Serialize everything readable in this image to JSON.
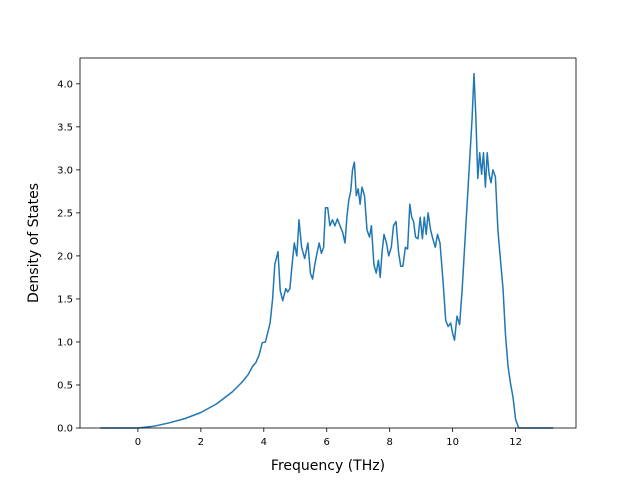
{
  "chart_data": {
    "type": "line",
    "xlabel": "Frequency (THz)",
    "ylabel": "Density of States",
    "xlim": [
      -1.84,
      13.92
    ],
    "ylim": [
      0.0,
      4.3
    ],
    "x_ticks": [
      0,
      2,
      4,
      6,
      8,
      10,
      12
    ],
    "y_ticks": [
      0.0,
      0.5,
      1.0,
      1.5,
      2.0,
      2.5,
      3.0,
      3.5,
      4.0
    ],
    "x_tick_labels": [
      "0",
      "2",
      "4",
      "6",
      "8",
      "10",
      "12"
    ],
    "y_tick_labels": [
      "0.0",
      "0.5",
      "1.0",
      "1.5",
      "2.0",
      "2.5",
      "3.0",
      "3.5",
      "4.0"
    ],
    "grid": false,
    "line_color": "#1f77b4",
    "series": [
      {
        "x": [
          -1.2,
          0.0,
          0.5,
          1.0,
          1.5,
          2.0,
          2.5,
          3.0,
          3.3,
          3.5,
          3.65,
          3.75,
          3.85,
          3.95,
          4.05,
          4.1,
          4.2,
          4.28,
          4.35,
          4.45,
          4.52,
          4.6,
          4.7,
          4.76,
          4.83,
          4.9,
          4.97,
          5.05,
          5.12,
          5.2,
          5.3,
          5.4,
          5.48,
          5.55,
          5.62,
          5.7,
          5.76,
          5.83,
          5.9,
          5.96,
          6.03,
          6.1,
          6.18,
          6.26,
          6.34,
          6.42,
          6.5,
          6.58,
          6.64,
          6.7,
          6.76,
          6.82,
          6.88,
          6.94,
          7.0,
          7.06,
          7.12,
          7.2,
          7.28,
          7.36,
          7.42,
          7.5,
          7.57,
          7.64,
          7.7,
          7.76,
          7.82,
          7.9,
          7.97,
          8.05,
          8.12,
          8.2,
          8.28,
          8.35,
          8.42,
          8.5,
          8.57,
          8.64,
          8.7,
          8.76,
          8.82,
          8.9,
          8.97,
          9.04,
          9.1,
          9.16,
          9.22,
          9.3,
          9.37,
          9.45,
          9.52,
          9.6,
          9.7,
          9.78,
          9.86,
          9.94,
          10.0,
          10.06,
          10.14,
          10.22,
          10.3,
          10.38,
          10.46,
          10.54,
          10.62,
          10.68,
          10.74,
          10.8,
          10.86,
          10.92,
          10.98,
          11.04,
          11.1,
          11.16,
          11.22,
          11.28,
          11.36,
          11.44,
          11.52,
          11.6,
          11.68,
          11.76,
          11.84,
          11.92,
          12.0,
          12.1,
          12.5,
          13.2
        ],
        "y": [
          0.0,
          0.0,
          0.02,
          0.06,
          0.11,
          0.18,
          0.28,
          0.42,
          0.53,
          0.62,
          0.72,
          0.76,
          0.85,
          0.99,
          1.0,
          1.07,
          1.22,
          1.5,
          1.9,
          2.05,
          1.6,
          1.48,
          1.62,
          1.58,
          1.62,
          1.9,
          2.15,
          2.0,
          2.42,
          2.1,
          1.97,
          2.15,
          1.8,
          1.73,
          1.9,
          2.05,
          2.15,
          2.03,
          2.1,
          2.56,
          2.56,
          2.35,
          2.42,
          2.35,
          2.43,
          2.35,
          2.28,
          2.15,
          2.45,
          2.65,
          2.75,
          3.0,
          3.09,
          2.7,
          2.78,
          2.6,
          2.8,
          2.7,
          2.3,
          2.22,
          2.35,
          1.9,
          1.8,
          1.95,
          1.75,
          2.05,
          2.25,
          2.15,
          2.0,
          2.1,
          2.35,
          2.4,
          2.05,
          1.88,
          1.88,
          2.1,
          2.08,
          2.6,
          2.45,
          2.4,
          2.22,
          2.2,
          2.45,
          2.2,
          2.45,
          2.25,
          2.5,
          2.3,
          2.2,
          2.1,
          2.25,
          2.15,
          1.68,
          1.25,
          1.18,
          1.22,
          1.1,
          1.02,
          1.3,
          1.2,
          1.6,
          2.1,
          2.6,
          3.1,
          3.6,
          4.12,
          3.6,
          2.9,
          3.2,
          2.95,
          3.2,
          2.8,
          3.2,
          2.95,
          2.85,
          3.0,
          2.92,
          2.3,
          1.95,
          1.62,
          1.08,
          0.72,
          0.52,
          0.35,
          0.1,
          0.0,
          0.0,
          0.0
        ]
      }
    ]
  }
}
